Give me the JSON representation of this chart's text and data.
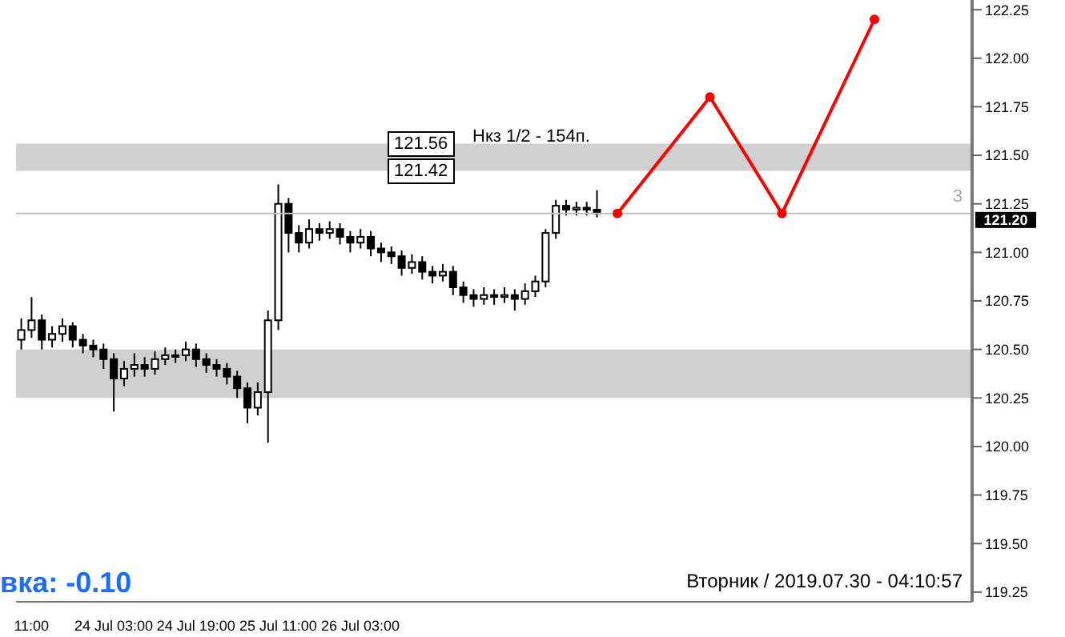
{
  "chart_data": {
    "type": "candlestick",
    "categories": [
      null,
      "11:00",
      null,
      null,
      null,
      null,
      null,
      null,
      null,
      "24 Jul 03:00",
      null,
      null,
      null,
      null,
      null,
      null,
      null,
      "24 Jul 19:00",
      null,
      null,
      null,
      null,
      null,
      null,
      null,
      "25 Jul 11:00",
      null,
      null,
      null,
      null,
      null,
      null,
      null,
      "26 Jul 03:00",
      null,
      null,
      null,
      null,
      null,
      null,
      null,
      null,
      null,
      null,
      null,
      null,
      null,
      null,
      null,
      null,
      null,
      null,
      null,
      null,
      null,
      null,
      null,
      null,
      null,
      null,
      null,
      null,
      null,
      null,
      null,
      null,
      null,
      null,
      null,
      null,
      null,
      null,
      null,
      null,
      null,
      null,
      null,
      null,
      null,
      null,
      null,
      null,
      null,
      null,
      null,
      null,
      null,
      null,
      null,
      null,
      null,
      null,
      null
    ],
    "ohlc": [
      [
        120.55,
        120.66,
        120.5,
        120.6
      ],
      [
        120.6,
        120.77,
        120.56,
        120.65
      ],
      [
        120.65,
        120.68,
        120.5,
        120.55
      ],
      [
        120.55,
        120.62,
        120.51,
        120.58
      ],
      [
        120.58,
        120.66,
        120.54,
        120.62
      ],
      [
        120.62,
        120.64,
        120.51,
        120.55
      ],
      [
        120.55,
        120.58,
        120.48,
        120.52
      ],
      [
        120.52,
        120.55,
        120.46,
        120.5
      ],
      [
        120.5,
        120.53,
        120.4,
        120.45
      ],
      [
        120.45,
        120.48,
        120.18,
        120.35
      ],
      [
        120.35,
        120.44,
        120.31,
        120.4
      ],
      [
        120.4,
        120.48,
        120.36,
        120.42
      ],
      [
        120.42,
        120.46,
        120.36,
        120.4
      ],
      [
        120.4,
        120.49,
        120.37,
        120.45
      ],
      [
        120.45,
        120.51,
        120.42,
        120.47
      ],
      [
        120.47,
        120.5,
        120.43,
        120.47
      ],
      [
        120.47,
        120.54,
        120.44,
        120.5
      ],
      [
        120.5,
        120.53,
        120.41,
        120.45
      ],
      [
        120.45,
        120.48,
        120.38,
        120.42
      ],
      [
        120.42,
        120.45,
        120.36,
        120.4
      ],
      [
        120.4,
        120.43,
        120.32,
        120.36
      ],
      [
        120.36,
        120.39,
        120.25,
        120.3
      ],
      [
        120.3,
        120.33,
        120.12,
        120.2
      ],
      [
        120.2,
        120.33,
        120.16,
        120.28
      ],
      [
        120.28,
        120.7,
        120.02,
        120.65
      ],
      [
        120.65,
        121.35,
        120.6,
        121.25
      ],
      [
        121.25,
        121.28,
        121.0,
        121.1
      ],
      [
        121.1,
        121.14,
        121.0,
        121.05
      ],
      [
        121.05,
        121.17,
        121.02,
        121.12
      ],
      [
        121.12,
        121.15,
        121.06,
        121.1
      ],
      [
        121.1,
        121.16,
        121.07,
        121.12
      ],
      [
        121.12,
        121.15,
        121.04,
        121.08
      ],
      [
        121.08,
        121.11,
        121.0,
        121.05
      ],
      [
        121.05,
        121.12,
        121.02,
        121.08
      ],
      [
        121.08,
        121.11,
        120.98,
        121.02
      ],
      [
        121.02,
        121.05,
        120.95,
        121.0
      ],
      [
        121.0,
        121.03,
        120.94,
        120.98
      ],
      [
        120.98,
        121.01,
        120.88,
        120.92
      ],
      [
        120.92,
        120.99,
        120.89,
        120.95
      ],
      [
        120.95,
        120.98,
        120.86,
        120.9
      ],
      [
        120.9,
        120.93,
        120.84,
        120.88
      ],
      [
        120.88,
        120.94,
        120.85,
        120.9
      ],
      [
        120.9,
        120.93,
        120.78,
        120.82
      ],
      [
        120.82,
        120.85,
        120.74,
        120.78
      ],
      [
        120.78,
        120.81,
        120.72,
        120.76
      ],
      [
        120.76,
        120.82,
        120.73,
        120.78
      ],
      [
        120.78,
        120.81,
        120.73,
        120.77
      ],
      [
        120.77,
        120.82,
        120.74,
        120.78
      ],
      [
        120.78,
        120.81,
        120.7,
        120.76
      ],
      [
        120.76,
        120.84,
        120.73,
        120.8
      ],
      [
        120.8,
        120.88,
        120.77,
        120.85
      ],
      [
        120.85,
        121.12,
        120.82,
        121.1
      ],
      [
        121.1,
        121.27,
        121.07,
        121.24
      ],
      [
        121.24,
        121.27,
        121.19,
        121.22
      ],
      [
        121.22,
        121.26,
        121.19,
        121.23
      ],
      [
        121.23,
        121.26,
        121.19,
        121.22
      ],
      [
        121.22,
        121.32,
        121.18,
        121.2
      ],
      null,
      null,
      null,
      null,
      null,
      null,
      null,
      null,
      null,
      null,
      null,
      null,
      null,
      null,
      null,
      null,
      null,
      null,
      null,
      null,
      null,
      null,
      null,
      null,
      null,
      null,
      null,
      null,
      null,
      null,
      null,
      null,
      null,
      null,
      null,
      null
    ],
    "series": [
      {
        "type": "line",
        "color": "#ff0000",
        "values": [
          null,
          null,
          null,
          null,
          null,
          null,
          null,
          null,
          null,
          null,
          null,
          null,
          null,
          null,
          null,
          null,
          null,
          null,
          null,
          null,
          null,
          null,
          null,
          null,
          null,
          null,
          null,
          null,
          null,
          null,
          null,
          null,
          null,
          null,
          null,
          null,
          null,
          null,
          null,
          null,
          null,
          null,
          null,
          null,
          null,
          null,
          null,
          null,
          null,
          null,
          null,
          null,
          null,
          null,
          null,
          null,
          null,
          null,
          121.2,
          null,
          null,
          null,
          null,
          null,
          null,
          null,
          null,
          121.8,
          null,
          null,
          null,
          null,
          null,
          null,
          121.2,
          null,
          null,
          null,
          null,
          null,
          null,
          null,
          null,
          122.2,
          null,
          null,
          null,
          null,
          null,
          null,
          null,
          null,
          null
        ]
      }
    ],
    "ylim": [
      119.2,
      122.3
    ],
    "yticks": [
      119.25,
      {
        "value": 119.5,
        "label": "119.50"
      },
      119.75,
      {
        "value": 120,
        "label": "120.00"
      },
      120.25,
      {
        "value": 120.5,
        "label": "120.50"
      },
      120.75,
      {
        "value": 121,
        "label": "121.00"
      },
      121.25,
      {
        "value": 121.5,
        "label": "121.50"
      },
      121.75,
      {
        "value": 122,
        "label": "122.00"
      },
      122.25
    ],
    "bands": [
      {
        "axis": "y",
        "from": 121.42,
        "to": 121.56,
        "label": "Нкз 1/2 - 154п.",
        "color": "#a9a9a9"
      },
      {
        "axis": "y",
        "from": 120.25,
        "to": 120.5,
        "color": "#a9a9a9"
      }
    ],
    "ref_lines": [
      {
        "axis": "y",
        "value": 121.2,
        "label": "121.20",
        "color": "#c0c0c0"
      }
    ],
    "annotations": [
      "вка: -0.10",
      "Вторник / 2019.07.30 - 04:10:57",
      "3",
      {
        "text": "121.56",
        "y": 121.56
      },
      {
        "text": "121.42",
        "y": 121.42
      }
    ],
    "marker": "circle",
    "line_style": "solid"
  }
}
